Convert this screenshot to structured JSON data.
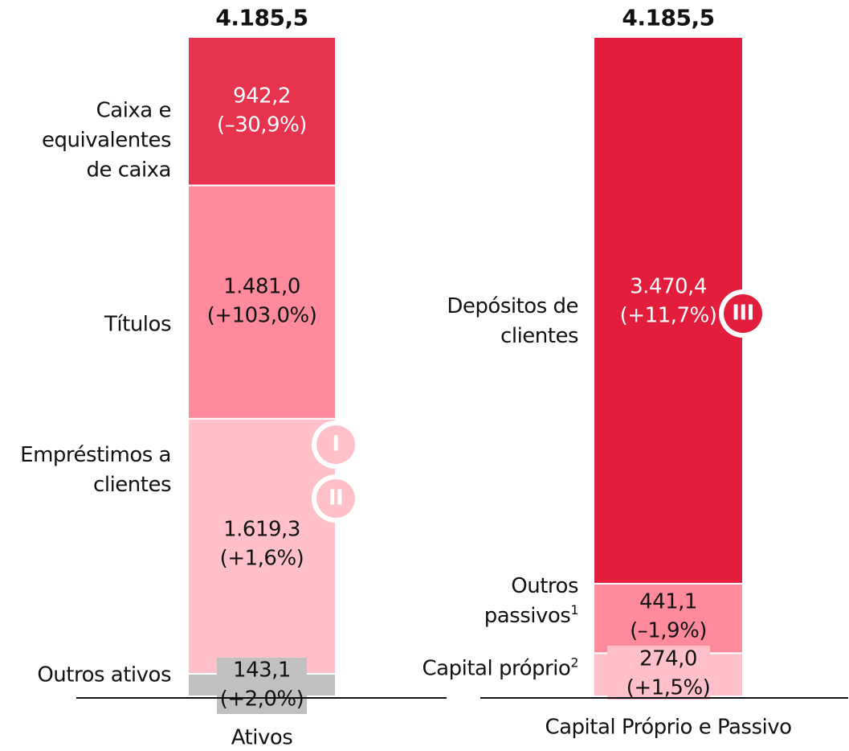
{
  "chart_data": {
    "type": "stacked_bar",
    "stacks": [
      {
        "category": "Ativos",
        "total": 4185.5,
        "total_label": "4.185,5",
        "segments": [
          {
            "name": "Outros ativos",
            "value": 143.1,
            "value_label": "143,1",
            "change": 2.0,
            "change_label": "(+2,0%)",
            "color": "#c0c0c0"
          },
          {
            "name": "Empréstimos a clientes",
            "value": 1619.3,
            "value_label": "1.619,3",
            "change": 1.6,
            "change_label": "(+1,6%)",
            "color": "#ffc0ca",
            "badges": [
              "I",
              "II"
            ]
          },
          {
            "name": "Títulos",
            "value": 1481.0,
            "value_label": "1.481,0",
            "change": 103.0,
            "change_label": "(+103,0%)",
            "color": "#ff8a9b"
          },
          {
            "name": "Caixa e equivalentes de caixa",
            "value": 942.2,
            "value_label": "942,2",
            "change": -30.9,
            "change_label": "(–30,9%)",
            "color": "#e8334f"
          }
        ]
      },
      {
        "category": "Capital Próprio e Passivo",
        "total": 4185.5,
        "total_label": "4.185,5",
        "segments": [
          {
            "name": "Capital próprio",
            "note": "2",
            "value": 274.0,
            "value_label": "274,0",
            "change": 1.5,
            "change_label": "(+1,5%)",
            "color": "#ffc0ca"
          },
          {
            "name": "Outros passivos",
            "note": "1",
            "value": 441.1,
            "value_label": "441,1",
            "change": -1.9,
            "change_label": "(–1,9%)",
            "color": "#ff8a9b"
          },
          {
            "name": "Depósitos de clientes",
            "value": 3470.4,
            "value_label": "3.470,4",
            "change": 11.7,
            "change_label": "(+11,7%)",
            "color": "#e31e3c",
            "badges": [
              "III"
            ]
          }
        ]
      }
    ]
  }
}
